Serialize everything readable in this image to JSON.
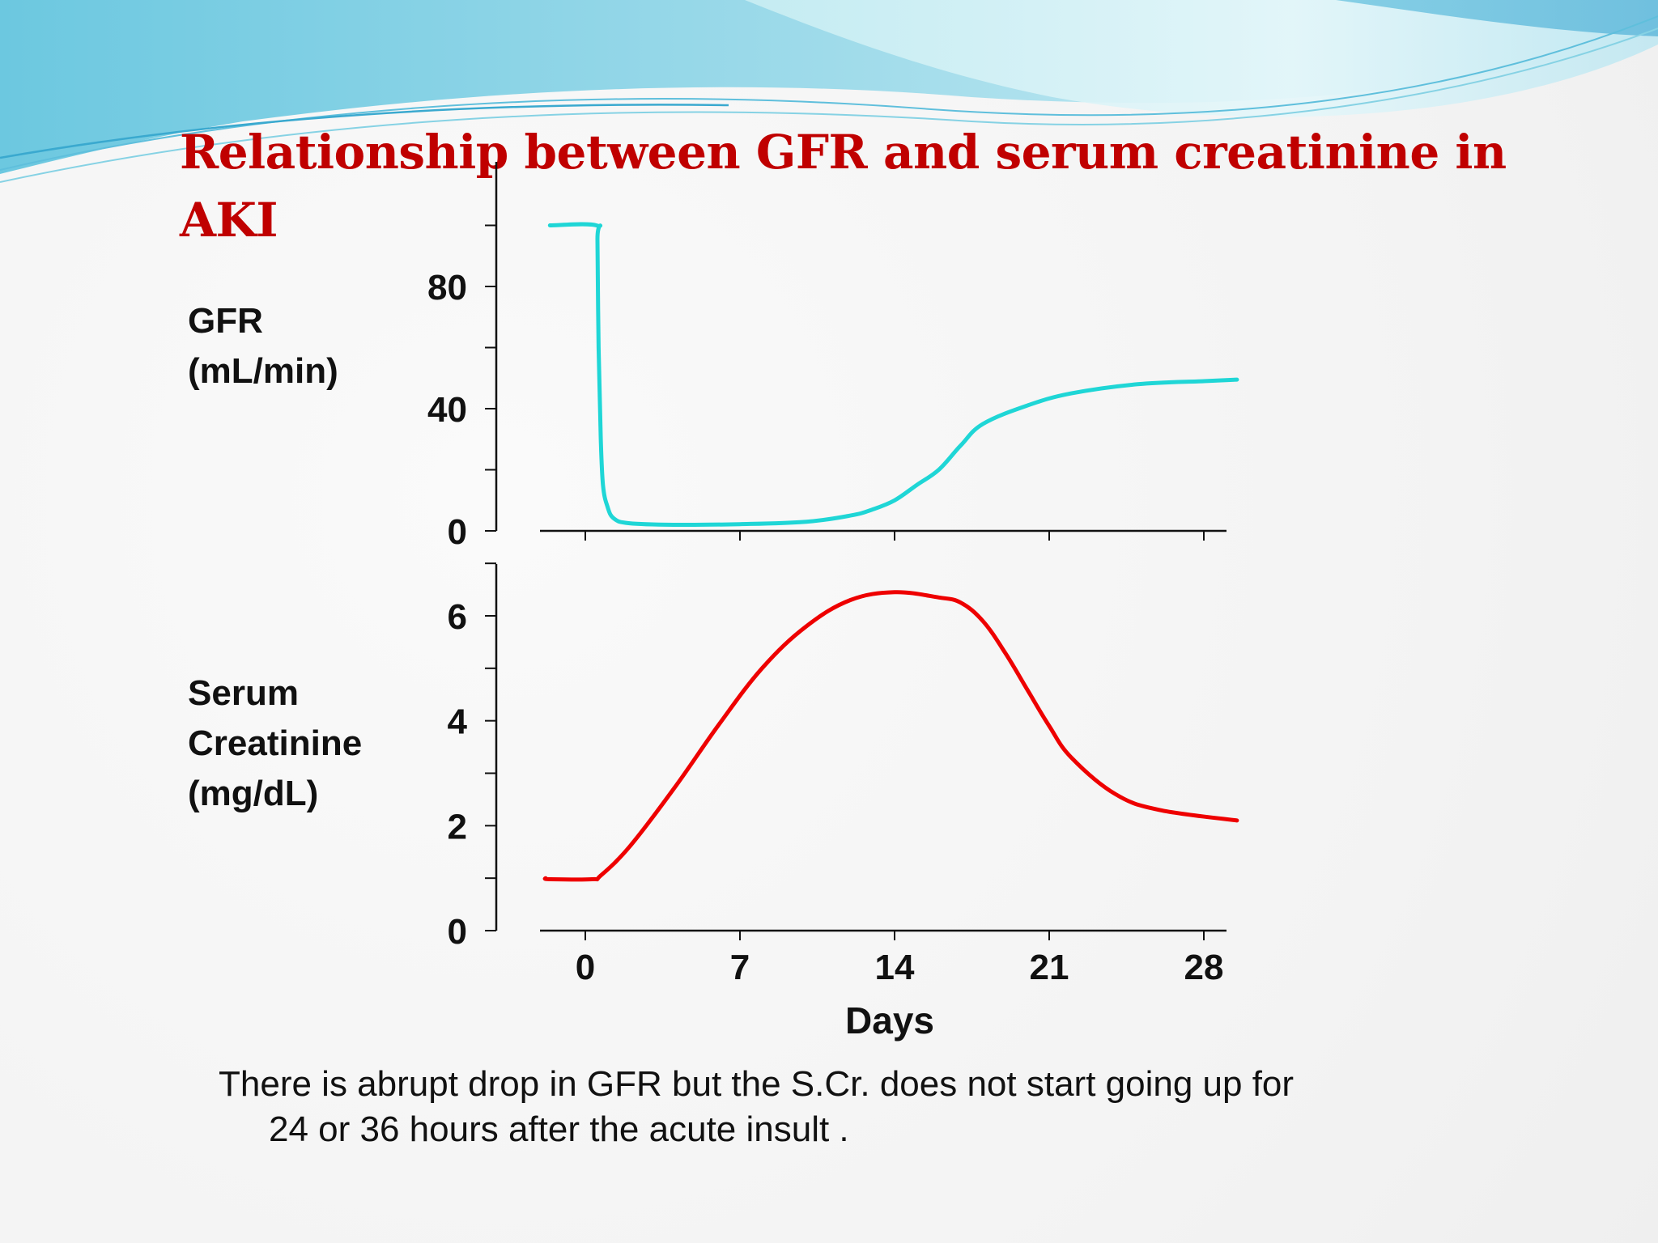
{
  "slide": {
    "title": "Relationship between GFR and serum creatinine in AKI",
    "caption_line1": "There is abrupt drop in GFR  but the S.Cr. does not start going up for",
    "caption_line2": "24 or 36 hours after the acute insult ."
  },
  "colors": {
    "title": "#c00000",
    "gfr_line": "#1fd6d6",
    "scr_line": "#ee0000",
    "axis": "#111111",
    "wave_light": "#b9e7f0",
    "wave_mid": "#7fcfe3",
    "wave_dark": "#3cb0d6"
  },
  "chart_data": [
    {
      "type": "line",
      "id": "gfr",
      "ylabel_lines": [
        "GFR",
        "(mL/min)"
      ],
      "xlim": [
        -1.5,
        29
      ],
      "ylim": [
        0,
        115
      ],
      "yticks": [
        0,
        40,
        80
      ],
      "yminor_step": 20,
      "xticks": [
        0,
        7,
        14,
        21,
        28
      ],
      "series": [
        {
          "name": "GFR",
          "color": "#1fd6d6",
          "x": [
            -1.6,
            0.5,
            0.55,
            0.6,
            0.7,
            0.8,
            1.0,
            1.3,
            2,
            4,
            7,
            10,
            12,
            13,
            14,
            15,
            16,
            17,
            18,
            20,
            22,
            25,
            28,
            29.5
          ],
          "y": [
            100,
            100,
            95,
            60,
            30,
            15,
            8,
            4,
            2.5,
            2,
            2.2,
            3,
            5,
            7,
            10,
            15,
            20,
            28,
            35,
            41,
            45,
            48,
            49,
            49.5
          ]
        }
      ]
    },
    {
      "type": "line",
      "id": "scr",
      "ylabel_lines": [
        "Serum",
        "Creatinine",
        "(mg/dL)"
      ],
      "xlim": [
        -1.5,
        29
      ],
      "ylim": [
        0,
        7
      ],
      "yticks": [
        0,
        2,
        4,
        6
      ],
      "yminor_step": 1,
      "xticks": [
        0,
        7,
        14,
        21,
        28
      ],
      "xticklabels": [
        "0",
        "7",
        "14",
        "21",
        "28"
      ],
      "xlabel": "Days",
      "series": [
        {
          "name": "Serum Creatinine",
          "color": "#ee0000",
          "x": [
            -1.8,
            -1.6,
            0.3,
            0.7,
            2,
            4,
            6,
            8,
            10,
            12,
            14,
            16,
            17,
            18,
            19,
            20,
            21,
            22,
            24,
            26,
            29.5
          ],
          "y": [
            1.0,
            0.98,
            0.98,
            1.05,
            1.6,
            2.7,
            3.9,
            5.0,
            5.8,
            6.3,
            6.45,
            6.35,
            6.25,
            5.9,
            5.3,
            4.6,
            3.9,
            3.3,
            2.6,
            2.3,
            2.1
          ]
        }
      ]
    }
  ]
}
